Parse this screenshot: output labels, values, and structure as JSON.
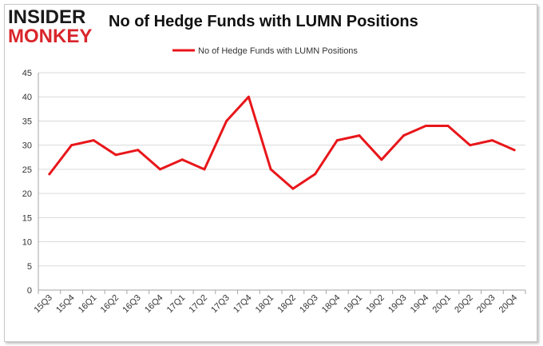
{
  "logo": {
    "line1": "INSIDER",
    "line2": "MONKEY"
  },
  "chart_data": {
    "type": "line",
    "title": "No of Hedge Funds with LUMN Positions",
    "xlabel": "",
    "ylabel": "",
    "categories": [
      "15Q3",
      "15Q4",
      "16Q1",
      "16Q2",
      "16Q3",
      "16Q4",
      "17Q1",
      "17Q2",
      "17Q3",
      "17Q4",
      "18Q1",
      "18Q2",
      "18Q3",
      "18Q4",
      "19Q1",
      "19Q2",
      "19Q3",
      "19Q4",
      "20Q1",
      "20Q2",
      "20Q3",
      "20Q4"
    ],
    "series": [
      {
        "name": "No of Hedge Funds with LUMN Positions",
        "color": "#e8161a",
        "values": [
          24,
          30,
          31,
          28,
          29,
          25,
          27,
          25,
          35,
          40,
          25,
          21,
          24,
          31,
          32,
          27,
          32,
          34,
          34,
          30,
          31,
          29
        ]
      }
    ],
    "ylim": [
      0,
      45
    ],
    "yticks": [
      0,
      5,
      10,
      15,
      20,
      25,
      30,
      35,
      40,
      45
    ],
    "grid": true,
    "legend": "top-center"
  }
}
